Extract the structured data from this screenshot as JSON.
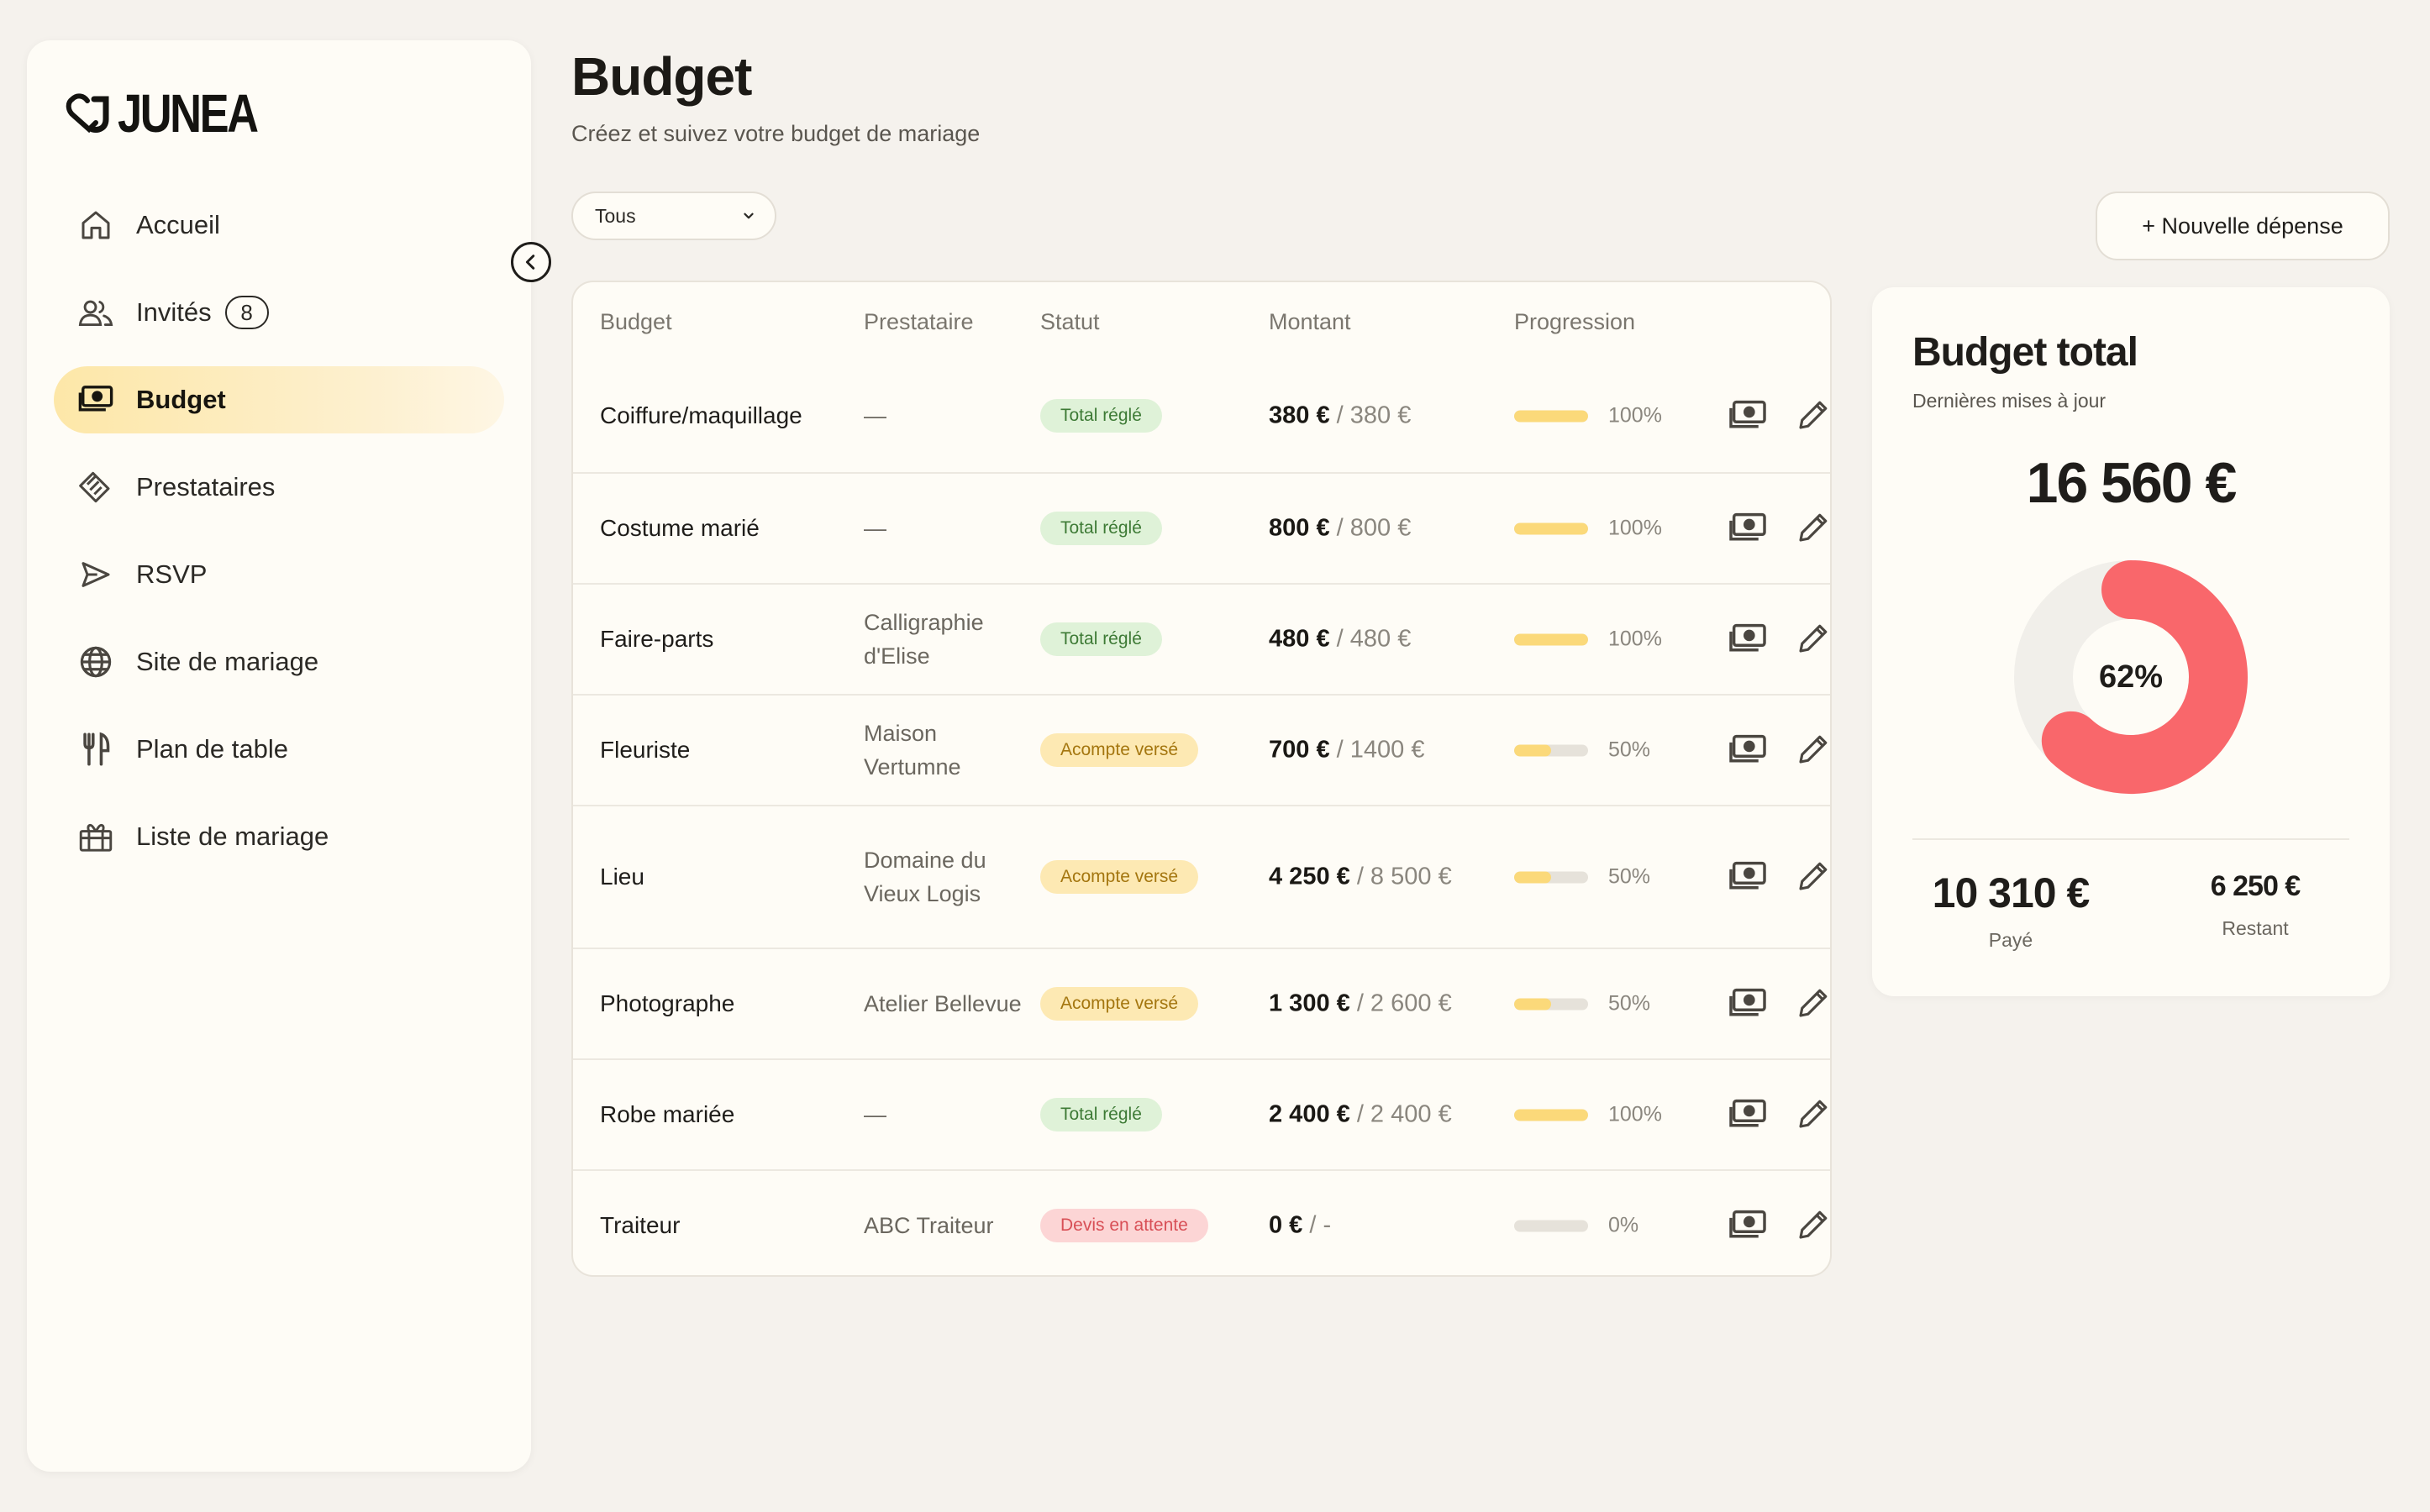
{
  "brand": {
    "name": "JUNEA"
  },
  "sidebar": {
    "items": [
      {
        "label": "Accueil",
        "icon": "home-icon"
      },
      {
        "label": "Invités",
        "icon": "users-icon",
        "badge": "8"
      },
      {
        "label": "Budget",
        "icon": "money-icon",
        "active": true
      },
      {
        "label": "Prestataires",
        "icon": "handshake-icon"
      },
      {
        "label": "RSVP",
        "icon": "send-icon"
      },
      {
        "label": "Site de mariage",
        "icon": "globe-icon"
      },
      {
        "label": "Plan de table",
        "icon": "cutlery-icon"
      },
      {
        "label": "Liste de mariage",
        "icon": "gift-icon"
      }
    ]
  },
  "header": {
    "title": "Budget",
    "subtitle": "Créez et suivez votre budget de mariage"
  },
  "filter": {
    "selected": "Tous"
  },
  "actions": {
    "new_expense": "+ Nouvelle dépense"
  },
  "table": {
    "columns": {
      "budget": "Budget",
      "presta": "Prestataire",
      "status": "Statut",
      "amount": "Montant",
      "progress": "Progression"
    },
    "rows": [
      {
        "budget": "Coiffure/maquillage",
        "presta": "—",
        "status": "Total réglé",
        "status_type": "paid",
        "paid": "380 €",
        "total": " / 380 €",
        "progress": 1.0,
        "pct": "100%"
      },
      {
        "budget": "Costume marié",
        "presta": "—",
        "status": "Total réglé",
        "status_type": "paid",
        "paid": "800 €",
        "total": " / 800 €",
        "progress": 1.0,
        "pct": "100%"
      },
      {
        "budget": "Faire-parts",
        "presta": "Calligraphie d'Elise",
        "status": "Total réglé",
        "status_type": "paid",
        "paid": "480 €",
        "total": " / 480 €",
        "progress": 1.0,
        "pct": "100%"
      },
      {
        "budget": "Fleuriste",
        "presta": "Maison Vertumne",
        "status": "Acompte versé",
        "status_type": "deposit",
        "paid": "700 €",
        "total": " / 1400 €",
        "progress": 0.5,
        "pct": "50%"
      },
      {
        "budget": "Lieu",
        "presta": "Domaine du Vieux Logis",
        "status": "Acompte versé",
        "status_type": "deposit",
        "paid": "4 250 €",
        "total": " / 8 500 €",
        "progress": 0.5,
        "pct": "50%"
      },
      {
        "budget": "Photographe",
        "presta": "Atelier Bellevue",
        "status": "Acompte versé",
        "status_type": "deposit",
        "paid": "1 300 €",
        "total": " / 2 600 €",
        "progress": 0.5,
        "pct": "50%"
      },
      {
        "budget": "Robe mariée",
        "presta": "—",
        "status": "Total réglé",
        "status_type": "paid",
        "paid": "2 400 €",
        "total": " / 2 400 €",
        "progress": 1.0,
        "pct": "100%"
      },
      {
        "budget": "Traiteur",
        "presta": "ABC Traiteur",
        "status": "Devis en attente",
        "status_type": "pending",
        "paid": "0 €",
        "total": " / -",
        "progress": 0.0,
        "pct": "0%"
      }
    ]
  },
  "summary": {
    "title": "Budget total",
    "subtitle": "Dernières mises à jour",
    "total": "16 560 €",
    "percent_label": "62%",
    "percent": 0.62,
    "paid_value": "10 310 €",
    "paid_label": "Payé",
    "remaining_value": "6 250 €",
    "remaining_label": "Restant"
  },
  "colors": {
    "accent_active": "#fde7a8",
    "progress_fill": "#fbd97a",
    "donut_fill": "#f9676b",
    "donut_track": "#f1efea",
    "paid_pill": "#dff2d8",
    "deposit_pill": "#fde9b3",
    "pending_pill": "#fcd5d5"
  }
}
